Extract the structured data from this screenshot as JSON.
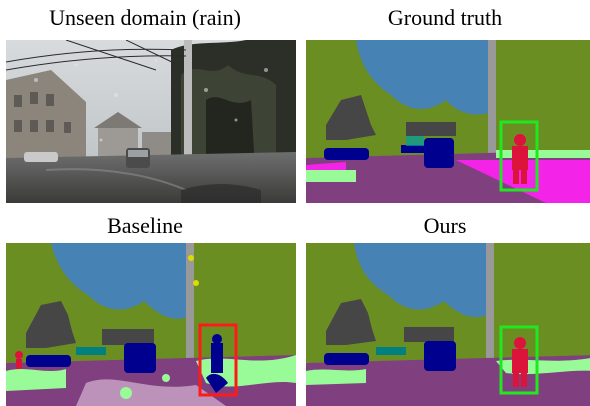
{
  "panels": [
    {
      "caption": "Unseen domain (rain)"
    },
    {
      "caption": "Ground truth"
    },
    {
      "caption": "Baseline"
    },
    {
      "caption": "Ours"
    }
  ],
  "colors": {
    "vegetation": "#6b8e23",
    "sky": "#4682b4",
    "building": "#464646",
    "road": "#804080",
    "sidewalk": "#f423e8",
    "car": "#00008e",
    "person": "#dc143c",
    "pole": "#999999",
    "terrain": "#98fb98",
    "fence": "#be9999",
    "traffic_sign": "#dcdc00",
    "box_correct": "#1fe81f",
    "box_wrong": "#ff1a1a"
  }
}
